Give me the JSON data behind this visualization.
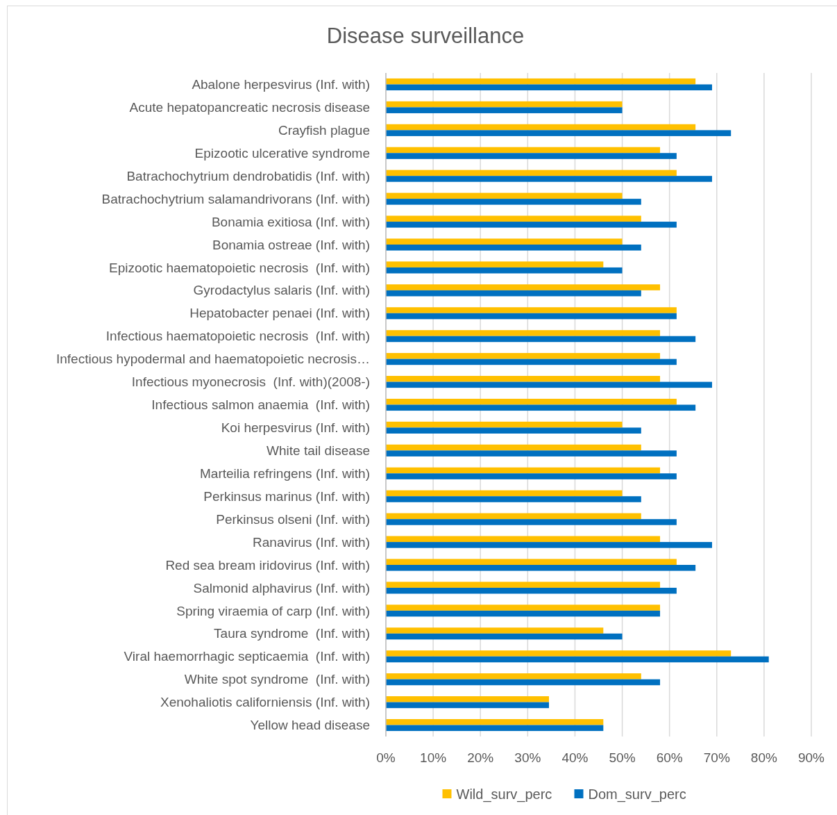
{
  "chart_data": {
    "type": "bar",
    "orientation": "horizontal",
    "title": "Disease surveillance",
    "categories": [
      "Abalone herpesvirus (Inf. with)",
      "Acute hepatopancreatic necrosis disease",
      "Crayfish plague",
      "Epizootic ulcerative syndrome",
      "Batrachochytrium dendrobatidis (Inf. with)",
      "Batrachochytrium salamandrivorans (Inf. with)",
      "Bonamia exitiosa (Inf. with)",
      "Bonamia ostreae (Inf. with)",
      "Epizootic haematopoietic necrosis  (Inf. with)",
      "Gyrodactylus salaris (Inf. with)",
      "Hepatobacter penaei (Inf. with)",
      "Infectious haematopoietic necrosis  (Inf. with)",
      "Infectious hypodermal and haematopoietic necrosis…",
      "Infectious myonecrosis  (Inf. with)(2008-)",
      "Infectious salmon anaemia  (Inf. with)",
      "Koi herpesvirus (Inf. with)",
      "White tail disease",
      "Marteilia refringens (Inf. with)",
      "Perkinsus marinus (Inf. with)",
      "Perkinsus olseni (Inf. with)",
      "Ranavirus (Inf. with)",
      "Red sea bream iridovirus (Inf. with)",
      "Salmonid alphavirus (Inf. with)",
      "Spring viraemia of carp (Inf. with)",
      "Taura syndrome  (Inf. with)",
      "Viral haemorrhagic septicaemia  (Inf. with)",
      "White spot syndrome  (Inf. with)",
      "Xenohaliotis californiensis (Inf. with)",
      "Yellow head disease"
    ],
    "series": [
      {
        "name": "Wild_surv_perc",
        "color": "#ffc000",
        "values": [
          65.5,
          50,
          65.5,
          58,
          61.5,
          50,
          54,
          50,
          46,
          58,
          61.5,
          58,
          58,
          58,
          61.5,
          50,
          54,
          58,
          50,
          54,
          58,
          61.5,
          58,
          58,
          46,
          73,
          54,
          34.5,
          46
        ]
      },
      {
        "name": "Dom_surv_perc",
        "color": "#0070c0",
        "values": [
          69,
          50,
          73,
          61.5,
          69,
          54,
          61.5,
          54,
          50,
          54,
          61.5,
          65.5,
          61.5,
          69,
          65.5,
          54,
          61.5,
          61.5,
          54,
          61.5,
          69,
          65.5,
          61.5,
          58,
          50,
          81,
          58,
          34.5,
          46
        ]
      }
    ],
    "xlim": [
      0,
      90
    ],
    "xticks": [
      {
        "value": 0,
        "label": "0%"
      },
      {
        "value": 10,
        "label": "10%"
      },
      {
        "value": 20,
        "label": "20%"
      },
      {
        "value": 30,
        "label": "30%"
      },
      {
        "value": 40,
        "label": "40%"
      },
      {
        "value": 50,
        "label": "50%"
      },
      {
        "value": 60,
        "label": "60%"
      },
      {
        "value": 70,
        "label": "70%"
      },
      {
        "value": 80,
        "label": "80%"
      },
      {
        "value": 90,
        "label": "90%"
      }
    ],
    "grid": "x",
    "legend": "bottom"
  }
}
